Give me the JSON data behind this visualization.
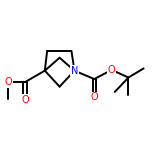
{
  "bg_color": "#ffffff",
  "bond_color": "#000000",
  "bond_width": 1.4,
  "atom_colors": {
    "O": "#ff0000",
    "N": "#0000ff",
    "C": "#000000"
  },
  "figsize": [
    1.52,
    1.52
  ],
  "dpi": 100,
  "xlim": [
    0,
    1
  ],
  "ylim": [
    0,
    1
  ],
  "font_size": 7.0
}
